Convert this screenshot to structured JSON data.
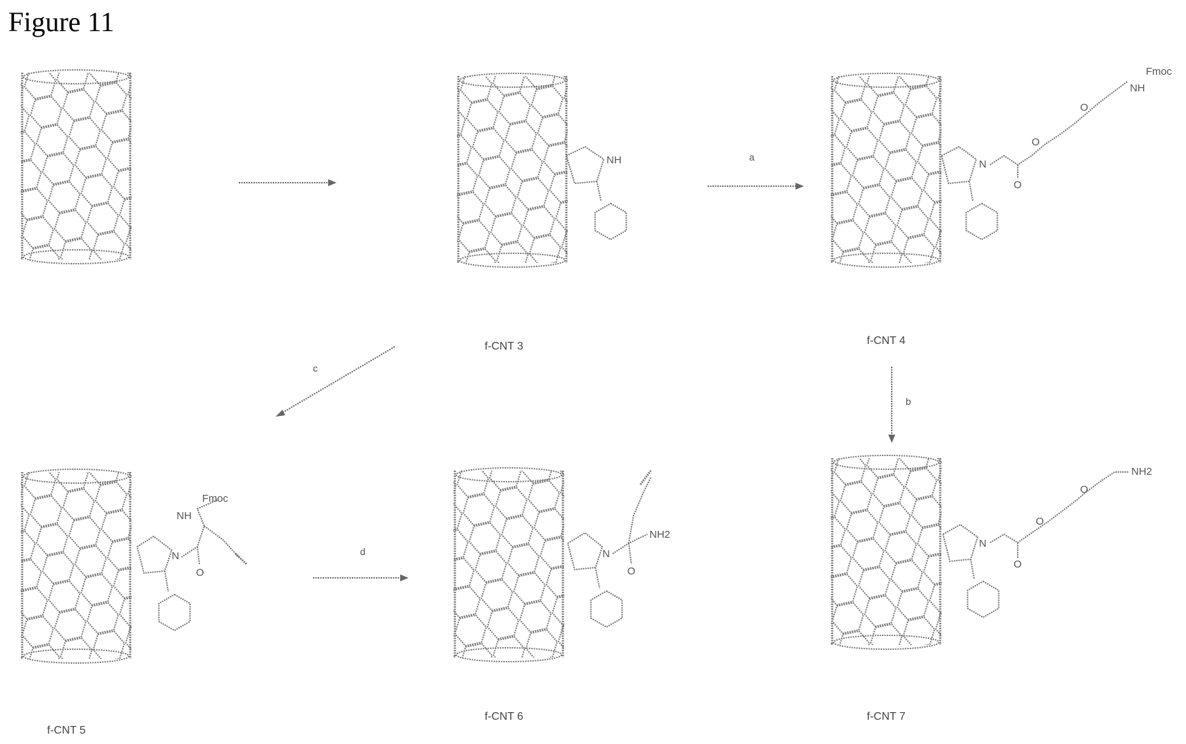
{
  "figure_title": "Figure 11",
  "compounds": {
    "start": "",
    "c3": "f-CNT 3",
    "c4": "f-CNT 4",
    "c5": "f-CNT 5",
    "c6": "f-CNT 6",
    "c7": "f-CNT 7"
  },
  "reagents": {
    "step1": "",
    "step_a": "a",
    "step_b": "b",
    "step_c": "c",
    "step_d": "d"
  },
  "atom_labels": {
    "nh": "NH",
    "n": "N",
    "o": "O",
    "fmoc": "Fmoc",
    "nh_fmoc": "NH",
    "nh2": "NH2"
  },
  "colors": {
    "ink": "#666666",
    "background": "#ffffff"
  }
}
